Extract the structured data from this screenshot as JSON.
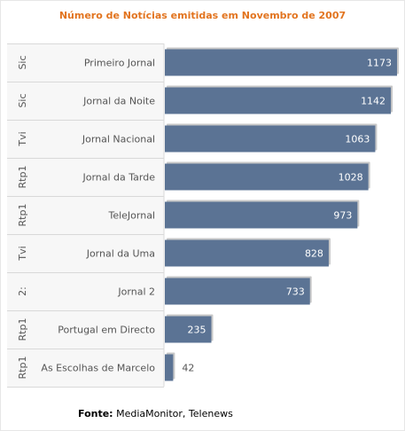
{
  "chart_data": {
    "type": "bar",
    "orientation": "horizontal",
    "title": "Número de Notícias emitidas em Novembro de 2007",
    "source_label": "Fonte:",
    "source_value": "MediaMonitor, Telenews",
    "group_labels": [
      "Sic",
      "Sic",
      "Tvi",
      "Rtp1",
      "Rtp1",
      "Tvi",
      "2:",
      "Rtp1",
      "Rtp1"
    ],
    "categories": [
      "Primeiro Jornal",
      "Jornal da Noite",
      "Jornal Nacional",
      "Jornal da Tarde",
      "TeleJornal",
      "Jornal da Uma",
      "Jornal 2",
      "Portugal em Directo",
      "As Escolhas de Marcelo"
    ],
    "values": [
      1173,
      1142,
      1063,
      1028,
      973,
      828,
      733,
      235,
      42
    ],
    "value_labels": [
      "1173",
      "1142",
      "1063",
      "1028",
      "973",
      "828",
      "733",
      "235",
      "42"
    ],
    "xlim": [
      0,
      1200
    ],
    "grid": false,
    "colors": {
      "bar": "#5b7394",
      "bar_shadow": "#c8c8c8",
      "title": "#e2741f",
      "axis_panel": "#f7f7f7",
      "separator": "#d9d9d9",
      "label_text": "#555555",
      "value_text_inside": "#ffffff",
      "value_text_outside": "#555555"
    }
  }
}
